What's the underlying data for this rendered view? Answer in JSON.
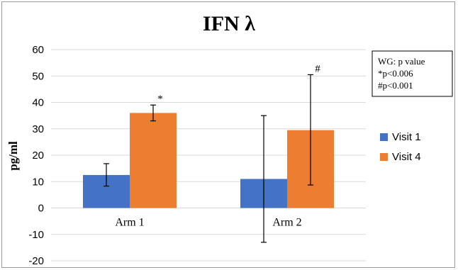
{
  "chart_data": {
    "type": "bar",
    "title": "IFN λ",
    "ylabel": "pg/ml",
    "xlabel": "",
    "categories": [
      "Arm 1",
      "Arm 2"
    ],
    "ylim": [
      -20,
      60
    ],
    "yticks": [
      -20,
      -10,
      0,
      10,
      20,
      30,
      40,
      50,
      60
    ],
    "grid": true,
    "legend_position": "right",
    "series": [
      {
        "name": "Visit 1",
        "color": "#4472C4",
        "values": [
          12.5,
          11.0
        ],
        "error_low": [
          8.3,
          -13.0
        ],
        "error_high": [
          16.8,
          35.0
        ]
      },
      {
        "name": "Visit 4",
        "color": "#ED7D31",
        "values": [
          36.0,
          29.5
        ],
        "error_low": [
          33.0,
          8.7
        ],
        "error_high": [
          39.0,
          50.5
        ]
      }
    ],
    "annotations": [
      {
        "text": "*",
        "category": 0,
        "series": 1,
        "y": 39.0
      },
      {
        "text": "#",
        "category": 1,
        "series": 1,
        "y": 50.5
      }
    ],
    "note_box": {
      "lines": [
        "WG: p value",
        "*p<0.006",
        "#p<0.001"
      ]
    }
  }
}
